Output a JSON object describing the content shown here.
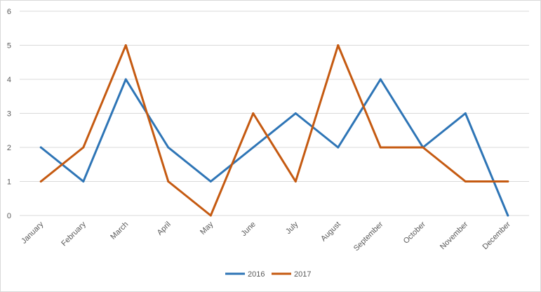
{
  "chart_data": {
    "type": "line",
    "title": "",
    "xlabel": "",
    "ylabel": "",
    "ylim": [
      0,
      6
    ],
    "yticks": [
      0,
      1,
      2,
      3,
      4,
      5,
      6
    ],
    "grid": true,
    "legend_position": "bottom",
    "categories": [
      "January",
      "February",
      "March",
      "April",
      "May",
      "June",
      "July",
      "August",
      "September",
      "October",
      "November",
      "December"
    ],
    "series": [
      {
        "name": "2016",
        "color": "#2e75b6",
        "values": [
          2,
          1,
          4,
          2,
          1,
          2,
          3,
          2,
          4,
          2,
          3,
          0
        ]
      },
      {
        "name": "2017",
        "color": "#c55a11",
        "values": [
          1,
          2,
          5,
          1,
          0,
          3,
          1,
          5,
          2,
          2,
          1,
          1
        ]
      }
    ]
  }
}
